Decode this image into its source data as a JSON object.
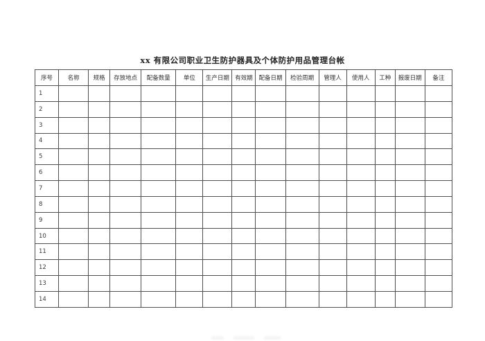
{
  "page": {
    "title_text": "xx 有限公司职业卫生防护器具及个体防护用品管理台帐"
  },
  "table": {
    "columns": [
      "序号",
      "名称",
      "规格",
      "存放地点",
      "配备数量",
      "单位",
      "生产日期",
      "有效期",
      "配备日期",
      "检验周期",
      "管理人",
      "使用人",
      "工种",
      "报废日期",
      "备注"
    ],
    "rows": [
      [
        "1",
        "",
        "",
        "",
        "",
        "",
        "",
        "",
        "",
        "",
        "",
        "",
        "",
        "",
        ""
      ],
      [
        "2",
        "",
        "",
        "",
        "",
        "",
        "",
        "",
        "",
        "",
        "",
        "",
        "",
        "",
        ""
      ],
      [
        "3",
        "",
        "",
        "",
        "",
        "",
        "",
        "",
        "",
        "",
        "",
        "",
        "",
        "",
        ""
      ],
      [
        "4",
        "",
        "",
        "",
        "",
        "",
        "",
        "",
        "",
        "",
        "",
        "",
        "",
        "",
        ""
      ],
      [
        "5",
        "",
        "",
        "",
        "",
        "",
        "",
        "",
        "",
        "",
        "",
        "",
        "",
        "",
        ""
      ],
      [
        "6",
        "",
        "",
        "",
        "",
        "",
        "",
        "",
        "",
        "",
        "",
        "",
        "",
        "",
        ""
      ],
      [
        "7",
        "",
        "",
        "",
        "",
        "",
        "",
        "",
        "",
        "",
        "",
        "",
        "",
        "",
        ""
      ],
      [
        "8",
        "",
        "",
        "",
        "",
        "",
        "",
        "",
        "",
        "",
        "",
        "",
        "",
        "",
        ""
      ],
      [
        "9",
        "",
        "",
        "",
        "",
        "",
        "",
        "",
        "",
        "",
        "",
        "",
        "",
        "",
        ""
      ],
      [
        "10",
        "",
        "",
        "",
        "",
        "",
        "",
        "",
        "",
        "",
        "",
        "",
        "",
        "",
        ""
      ],
      [
        "11",
        "",
        "",
        "",
        "",
        "",
        "",
        "",
        "",
        "",
        "",
        "",
        "",
        "",
        ""
      ],
      [
        "12",
        "",
        "",
        "",
        "",
        "",
        "",
        "",
        "",
        "",
        "",
        "",
        "",
        "",
        ""
      ],
      [
        "13",
        "",
        "",
        "",
        "",
        "",
        "",
        "",
        "",
        "",
        "",
        "",
        "",
        "",
        ""
      ],
      [
        "14",
        "",
        "",
        "",
        "",
        "",
        "",
        "",
        "",
        "",
        "",
        "",
        "",
        "",
        ""
      ]
    ]
  },
  "colors": {
    "border": "#4f4f4f",
    "text": "#333333",
    "background": "#ffffff"
  }
}
